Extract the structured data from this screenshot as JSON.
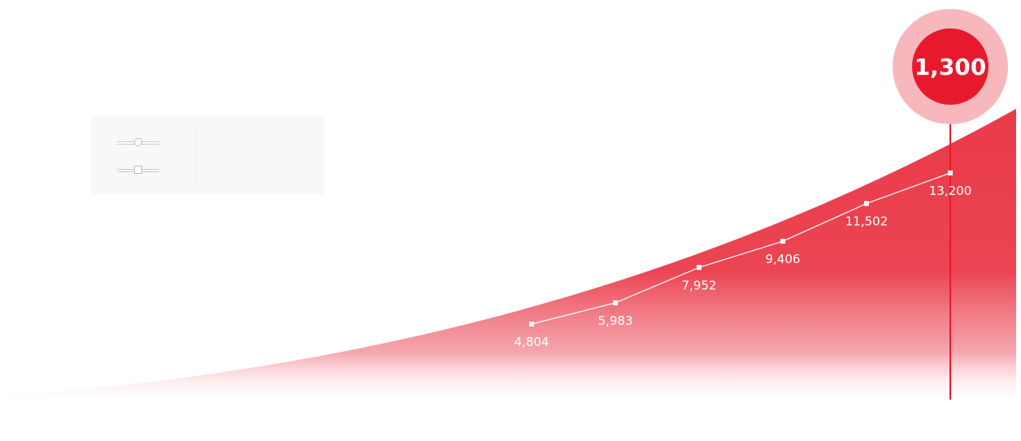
{
  "chart_data": {
    "type": "line",
    "title": "",
    "xlabel": "",
    "ylabel": "",
    "series": [
      {
        "values": [
          4804,
          5983,
          7952,
          9406,
          11502,
          13200
        ],
        "labels": [
          "4,804",
          "5,983",
          "7,952",
          "9,406",
          "11,502",
          "13,200"
        ]
      }
    ],
    "highlight": {
      "value": 1300,
      "label": "1,300"
    },
    "legend": [
      {
        "marker": "circle",
        "label": ""
      },
      {
        "marker": "square",
        "label": ""
      }
    ],
    "ylim": [
      0,
      16000
    ],
    "grid": false,
    "colors": {
      "area": "#e9303f",
      "highlight_outer": "#f7b8bd",
      "highlight_inner": "#e8192c",
      "line": "#ffffff"
    }
  }
}
